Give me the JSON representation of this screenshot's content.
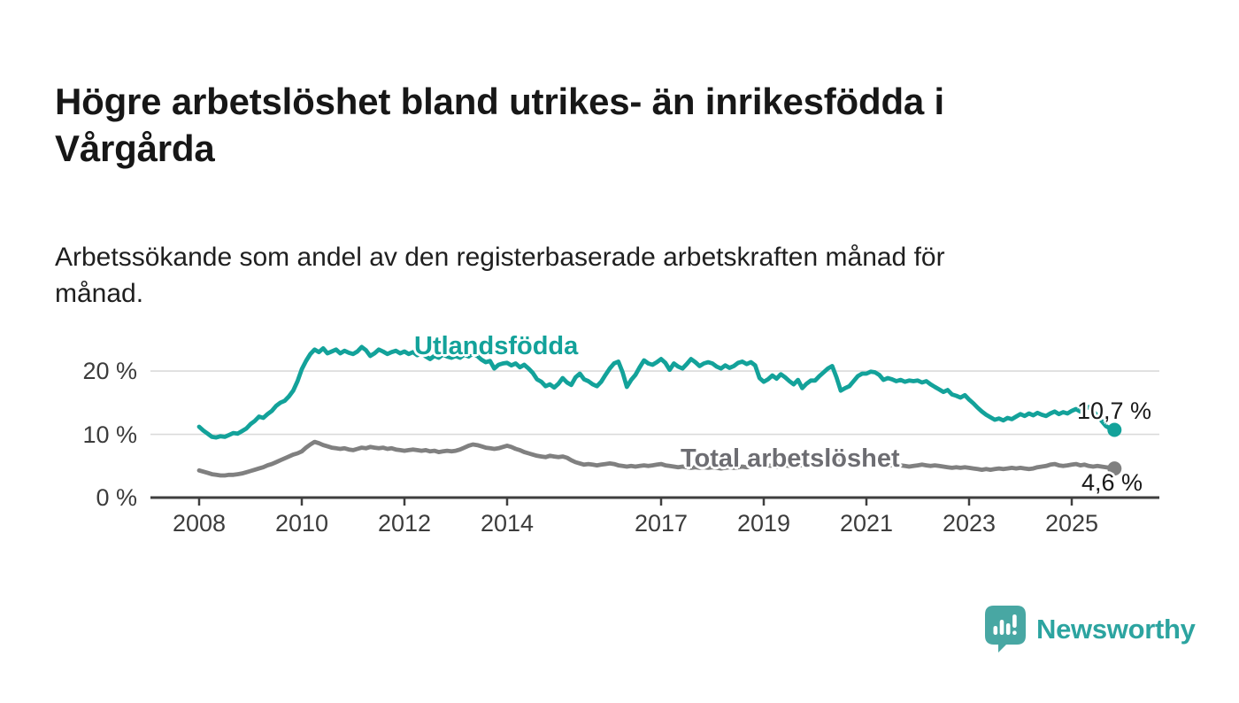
{
  "header": {
    "title_line1": "Högre arbetslöshet bland utrikes- än inrikesfödda i",
    "title_line2": "Vårgårda",
    "subtitle_line1": "Arbetssökande som andel av den registerbaserade arbetskraften månad för",
    "subtitle_line2": "månad."
  },
  "footer": {
    "brand": "Newsworthy"
  },
  "colors": {
    "teal": "#13a29a",
    "gray_line": "#808080",
    "gray_label": "#6d6d72",
    "grid": "#dadada",
    "axis": "#3f3f3f",
    "logo_icon": "#48a7a3",
    "logo_text": "#2ca4a0"
  },
  "chart_data": {
    "type": "line",
    "title": "Högre arbetslöshet bland utrikes- än inrikesfödda i Vårgårda",
    "subtitle": "Arbetssökande som andel av den registerbaserade arbetskraften månad för månad.",
    "unit": "%",
    "frequency": "monthly",
    "start": "2008-01",
    "end": "2025-11",
    "grid": "horizontal",
    "legend": "inline-labels",
    "x_domain": [
      2007.05,
      2026.7
    ],
    "ylim": [
      0,
      26
    ],
    "x_ticks": [
      {
        "value": 2008,
        "label": "2008"
      },
      {
        "value": 2010,
        "label": "2010"
      },
      {
        "value": 2012,
        "label": "2012"
      },
      {
        "value": 2014,
        "label": "2014"
      },
      {
        "value": 2017,
        "label": "2017"
      },
      {
        "value": 2019,
        "label": "2019"
      },
      {
        "value": 2021,
        "label": "2021"
      },
      {
        "value": 2023,
        "label": "2023"
      },
      {
        "value": 2025,
        "label": "2025"
      }
    ],
    "y_ticks": [
      {
        "value": 0,
        "label": "0 %"
      },
      {
        "value": 10,
        "label": "10 %"
      },
      {
        "value": 20,
        "label": "20 %"
      }
    ],
    "series": [
      {
        "name": "Utlandsfödda",
        "color": "#13a29a",
        "end_label": "10,7 %",
        "end_value": 10.7,
        "values": [
          11.2,
          10.6,
          10.1,
          9.6,
          9.5,
          9.7,
          9.6,
          9.9,
          10.2,
          10.1,
          10.5,
          10.9,
          11.6,
          12.1,
          12.8,
          12.6,
          13.2,
          13.7,
          14.5,
          15.0,
          15.3,
          16.0,
          16.9,
          18.4,
          20.3,
          21.6,
          22.7,
          23.4,
          23.0,
          23.6,
          22.8,
          23.1,
          23.4,
          22.8,
          23.2,
          22.9,
          22.7,
          23.1,
          23.8,
          23.3,
          22.4,
          22.8,
          23.4,
          23.1,
          22.7,
          23.0,
          23.2,
          22.8,
          23.1,
          22.7,
          23.0,
          22.5,
          22.8,
          22.3,
          21.9,
          22.4,
          22.1,
          22.6,
          22.3,
          22.1,
          22.4,
          22.1,
          22.6,
          22.3,
          22.8,
          22.4,
          21.8,
          21.4,
          21.6,
          20.4,
          21.0,
          21.2,
          21.3,
          20.9,
          21.2,
          20.6,
          21.0,
          20.4,
          19.7,
          18.7,
          18.3,
          17.6,
          17.9,
          17.4,
          18.0,
          18.9,
          18.2,
          17.8,
          19.0,
          19.6,
          18.7,
          18.4,
          17.9,
          17.6,
          18.3,
          19.4,
          20.4,
          21.2,
          21.5,
          19.8,
          17.5,
          18.6,
          19.4,
          20.6,
          21.7,
          21.2,
          21.0,
          21.4,
          21.9,
          21.3,
          20.2,
          21.2,
          20.7,
          20.4,
          21.1,
          21.9,
          21.4,
          20.8,
          21.2,
          21.4,
          21.2,
          20.7,
          20.4,
          20.9,
          20.5,
          20.8,
          21.3,
          21.5,
          21.1,
          21.4,
          20.9,
          18.9,
          18.3,
          18.7,
          19.3,
          18.8,
          19.5,
          19.0,
          18.4,
          17.9,
          18.6,
          17.3,
          18.0,
          18.5,
          18.5,
          19.2,
          19.8,
          20.4,
          20.8,
          19.0,
          16.9,
          17.3,
          17.6,
          18.4,
          19.2,
          19.6,
          19.6,
          19.9,
          19.8,
          19.4,
          18.6,
          18.9,
          18.7,
          18.4,
          18.6,
          18.3,
          18.5,
          18.4,
          18.5,
          18.2,
          18.4,
          17.9,
          17.5,
          17.1,
          16.7,
          17.0,
          16.3,
          16.1,
          15.8,
          16.2,
          15.5,
          14.9,
          14.2,
          13.6,
          13.1,
          12.7,
          12.3,
          12.5,
          12.2,
          12.6,
          12.4,
          12.8,
          13.2,
          12.9,
          13.3,
          13.0,
          13.4,
          13.1,
          12.9,
          13.3,
          13.6,
          13.2,
          13.5,
          13.3,
          13.7,
          14.0,
          13.6,
          14.1,
          14.3,
          13.7,
          12.9,
          12.1,
          11.3,
          10.9,
          10.7
        ]
      },
      {
        "name": "Total arbetslöshet",
        "color": "#808080",
        "end_label": "4,6 %",
        "end_value": 4.6,
        "values": [
          4.3,
          4.1,
          3.9,
          3.7,
          3.6,
          3.5,
          3.5,
          3.6,
          3.6,
          3.7,
          3.8,
          4.0,
          4.2,
          4.4,
          4.6,
          4.8,
          5.1,
          5.3,
          5.6,
          5.9,
          6.2,
          6.5,
          6.8,
          7.0,
          7.3,
          7.9,
          8.4,
          8.8,
          8.6,
          8.3,
          8.1,
          7.9,
          7.8,
          7.7,
          7.8,
          7.6,
          7.5,
          7.7,
          7.9,
          7.8,
          8.0,
          7.9,
          7.8,
          7.9,
          7.7,
          7.8,
          7.6,
          7.5,
          7.4,
          7.5,
          7.6,
          7.5,
          7.4,
          7.5,
          7.3,
          7.4,
          7.2,
          7.3,
          7.4,
          7.3,
          7.4,
          7.6,
          7.9,
          8.2,
          8.4,
          8.3,
          8.1,
          7.9,
          7.8,
          7.7,
          7.8,
          8.0,
          8.2,
          8.0,
          7.7,
          7.5,
          7.2,
          7.0,
          6.8,
          6.6,
          6.5,
          6.4,
          6.6,
          6.5,
          6.4,
          6.5,
          6.3,
          5.9,
          5.6,
          5.4,
          5.2,
          5.3,
          5.2,
          5.1,
          5.2,
          5.3,
          5.4,
          5.3,
          5.1,
          5.0,
          4.9,
          5.0,
          4.9,
          5.0,
          5.1,
          5.0,
          5.1,
          5.2,
          5.3,
          5.1,
          5.0,
          4.9,
          4.8,
          4.9,
          4.8,
          4.7,
          4.8,
          4.7,
          4.8,
          4.7,
          4.8,
          4.7,
          4.6,
          4.7,
          4.8,
          4.7,
          4.8,
          4.9,
          4.8,
          4.9,
          5.0,
          4.9,
          5.0,
          5.1,
          5.0,
          4.9,
          5.0,
          5.1,
          5.0,
          5.1,
          5.2,
          5.1,
          5.2,
          5.1,
          5.2,
          5.3,
          5.5,
          5.8,
          5.9,
          5.8,
          5.7,
          5.6,
          5.5,
          5.4,
          5.5,
          5.4,
          5.3,
          5.4,
          5.3,
          5.2,
          5.1,
          5.2,
          5.1,
          5.0,
          5.1,
          5.0,
          4.9,
          5.0,
          5.1,
          5.2,
          5.1,
          5.0,
          5.1,
          5.0,
          4.9,
          4.8,
          4.7,
          4.8,
          4.7,
          4.8,
          4.7,
          4.6,
          4.5,
          4.4,
          4.5,
          4.4,
          4.5,
          4.6,
          4.5,
          4.6,
          4.7,
          4.6,
          4.7,
          4.6,
          4.5,
          4.6,
          4.8,
          4.9,
          5.0,
          5.2,
          5.3,
          5.1,
          5.0,
          5.1,
          5.2,
          5.3,
          5.1,
          5.2,
          5.0,
          4.9,
          5.0,
          4.9,
          4.8,
          4.7,
          4.6
        ]
      }
    ]
  }
}
